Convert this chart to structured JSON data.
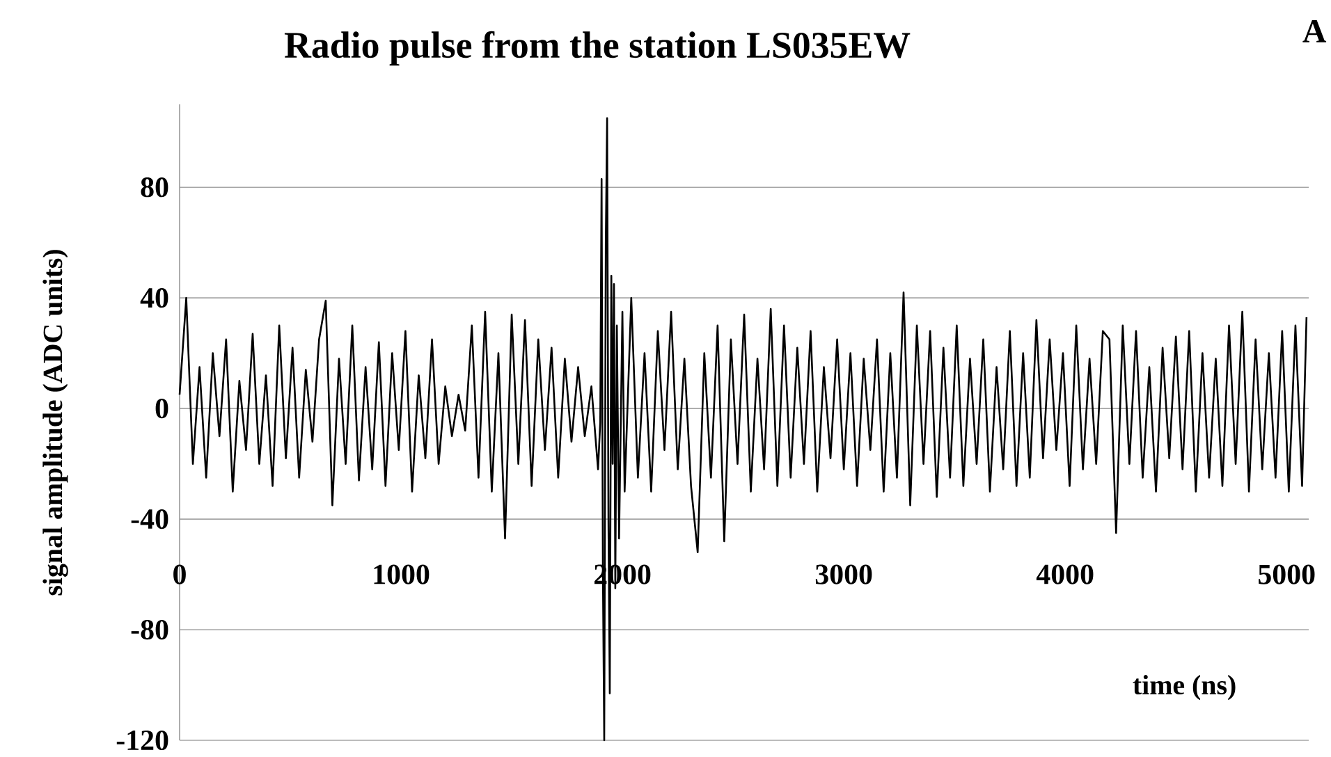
{
  "chart_data": {
    "type": "line",
    "title": "Radio pulse from the station LS035EW",
    "xlabel": "time (ns)",
    "ylabel": "signal amplitude (ADC units)",
    "annotations": [
      "A"
    ],
    "xlim": [
      0,
      5100
    ],
    "ylim": [
      -120,
      110
    ],
    "xticks": [
      0,
      1000,
      2000,
      3000,
      4000,
      5000
    ],
    "yticks": [
      80,
      40,
      0,
      -40,
      -80,
      -120
    ],
    "grid": "y",
    "series": [
      {
        "color": "#000000",
        "x": [
          0,
          30,
          60,
          90,
          120,
          150,
          180,
          210,
          240,
          270,
          300,
          330,
          360,
          390,
          420,
          450,
          480,
          510,
          540,
          570,
          600,
          630,
          660,
          690,
          720,
          750,
          780,
          810,
          840,
          870,
          900,
          930,
          960,
          990,
          1020,
          1050,
          1080,
          1110,
          1140,
          1170,
          1200,
          1230,
          1260,
          1290,
          1320,
          1350,
          1380,
          1410,
          1440,
          1470,
          1500,
          1530,
          1560,
          1590,
          1620,
          1650,
          1680,
          1710,
          1740,
          1770,
          1800,
          1830,
          1860,
          1890,
          1900,
          1906,
          1912,
          1918,
          1925,
          1931,
          1937,
          1943,
          1950,
          1956,
          1962,
          1968,
          1975,
          1985,
          2000,
          2010,
          2040,
          2070,
          2100,
          2130,
          2160,
          2190,
          2220,
          2250,
          2280,
          2310,
          2340,
          2370,
          2400,
          2430,
          2460,
          2490,
          2520,
          2550,
          2580,
          2610,
          2640,
          2670,
          2700,
          2730,
          2760,
          2790,
          2820,
          2850,
          2880,
          2910,
          2940,
          2970,
          3000,
          3030,
          3060,
          3090,
          3120,
          3150,
          3180,
          3210,
          3240,
          3270,
          3300,
          3330,
          3360,
          3390,
          3420,
          3450,
          3480,
          3510,
          3540,
          3570,
          3600,
          3630,
          3660,
          3690,
          3720,
          3750,
          3780,
          3810,
          3840,
          3870,
          3900,
          3930,
          3960,
          3990,
          4020,
          4050,
          4080,
          4110,
          4140,
          4170,
          4200,
          4230,
          4260,
          4290,
          4320,
          4350,
          4380,
          4410,
          4440,
          4470,
          4500,
          4530,
          4560,
          4590,
          4620,
          4650,
          4680,
          4710,
          4740,
          4770,
          4800,
          4830,
          4860,
          4890,
          4920,
          4950,
          4980,
          5010,
          5040,
          5070,
          5090
        ],
        "values": [
          5,
          40,
          -20,
          15,
          -25,
          20,
          -10,
          25,
          -30,
          10,
          -15,
          27,
          -20,
          12,
          -28,
          30,
          -18,
          22,
          -25,
          14,
          -12,
          25,
          39,
          -35,
          18,
          -20,
          30,
          -26,
          15,
          -22,
          24,
          -28,
          20,
          -15,
          28,
          -30,
          12,
          -18,
          25,
          -20,
          8,
          -10,
          5,
          -8,
          30,
          -25,
          35,
          -30,
          20,
          -47,
          34,
          -20,
          32,
          -28,
          25,
          -15,
          22,
          -25,
          18,
          -12,
          15,
          -10,
          8,
          -22,
          -5,
          83,
          -60,
          -120,
          60,
          105,
          -40,
          -103,
          48,
          -20,
          45,
          -65,
          30,
          -47,
          35,
          -30,
          40,
          -25,
          20,
          -30,
          28,
          -15,
          35,
          -22,
          18,
          -28,
          -52,
          20,
          -25,
          30,
          -48,
          25,
          -20,
          34,
          -30,
          18,
          -22,
          36,
          -28,
          30,
          -25,
          22,
          -20,
          28,
          -30,
          15,
          -18,
          25,
          -22,
          20,
          -28,
          18,
          -15,
          25,
          -30,
          20,
          -25,
          42,
          -35,
          30,
          -20,
          28,
          -32,
          22,
          -25,
          30,
          -28,
          18,
          -20,
          25,
          -30,
          15,
          -22,
          28,
          -28,
          20,
          -25,
          32,
          -18,
          25,
          -15,
          20,
          -28,
          30,
          -22,
          18,
          -20,
          28,
          25,
          -45,
          30,
          -20,
          28,
          -25,
          15,
          -30,
          22,
          -18,
          26,
          -22,
          28,
          -30,
          20,
          -25,
          18,
          -28,
          30,
          -20,
          35,
          -30,
          25,
          -22,
          20,
          -25,
          28,
          -30,
          30,
          -28,
          33
        ]
      }
    ]
  }
}
